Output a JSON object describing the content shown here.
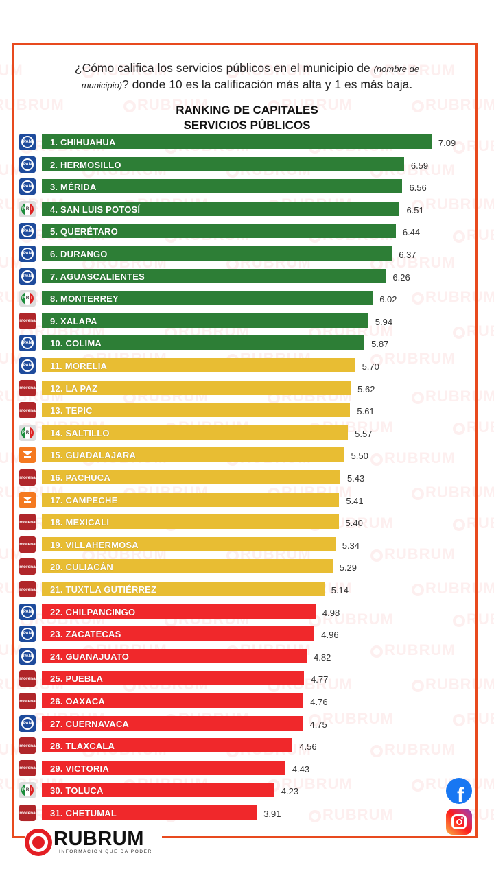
{
  "question": {
    "part1": "¿Cómo califica los servicios públicos en el municipio de ",
    "italic1": "(nombre de",
    "italic2": "municipio)",
    "part2": "? donde 10 es la calificación más alta y 1 es más baja."
  },
  "watermark_text": "RUBRUM",
  "brand": {
    "name": "RUBRUM",
    "tagline": "INFORMACIÓN QUE DA PODER"
  },
  "social": {
    "facebook_icon": "facebook-icon",
    "instagram_icon": "instagram-icon"
  },
  "colors": {
    "high": "#2d7e36",
    "mid": "#e8bd33",
    "low": "#f0282b",
    "frame": "#e84a1e"
  },
  "parties": {
    "PAN": {
      "label": "PAN",
      "icon": "pan-logo-icon"
    },
    "PRI": {
      "label": "PRI",
      "icon": "pri-logo-icon"
    },
    "MORENA": {
      "label": "morena",
      "icon": "morena-logo-icon"
    },
    "MC": {
      "label": "MC",
      "icon": "movimiento-ciudadano-logo-icon"
    }
  },
  "chart_data": {
    "type": "bar",
    "orientation": "horizontal",
    "title": "RANKING DE CAPITALES\nSERVICIOS PÚBLICOS",
    "title_lines": [
      "RANKING DE CAPITALES",
      "SERVICIOS PÚBLICOS"
    ],
    "xlabel": "",
    "ylabel": "",
    "xlim": [
      0,
      10
    ],
    "grid": false,
    "legend": "none",
    "categories": [
      "1. CHIHUAHUA",
      "2. HERMOSILLO",
      "3. MÉRIDA",
      "4. SAN LUIS POTOSÍ",
      "5. QUERÉTARO",
      "6. DURANGO",
      "7. AGUASCALIENTES",
      "8. MONTERREY",
      "9. XALAPA",
      "10. COLIMA",
      "11. MORELIA",
      "12. LA PAZ",
      "13. TEPIC",
      "14. SALTILLO",
      "15. GUADALAJARA",
      "16. PACHUCA",
      "17. CAMPECHE",
      "18. MEXICALI",
      "19. VILLAHERMOSA",
      "20. CULIACÁN",
      "21. TUXTLA GUTIÉRREZ",
      "22. CHILPANCINGO",
      "23. ZACATECAS",
      "24. GUANAJUATO",
      "25. PUEBLA",
      "26. OAXACA",
      "27. CUERNAVACA",
      "28. TLAXCALA",
      "29. VICTORIA",
      "30. TOLUCA",
      "31. CHETUMAL"
    ],
    "values": [
      7.09,
      6.59,
      6.56,
      6.51,
      6.44,
      6.37,
      6.26,
      6.02,
      5.94,
      5.87,
      5.7,
      5.62,
      5.61,
      5.57,
      5.5,
      5.43,
      5.41,
      5.4,
      5.34,
      5.29,
      5.14,
      4.98,
      4.96,
      4.82,
      4.77,
      4.76,
      4.75,
      4.56,
      4.43,
      4.23,
      3.91
    ],
    "value_labels": [
      "7.09",
      "6.59",
      "6.56",
      "6.51",
      "6.44",
      "6.37",
      "6.26",
      "6.02",
      "5.94",
      "5.87",
      "5.70",
      "5.62",
      "5.61",
      "5.57",
      "5.50",
      "5.43",
      "5.41",
      "5.40",
      "5.34",
      "5.29",
      "5.14",
      "4.98",
      "4.96",
      "4.82",
      "4.77",
      "4.76",
      "4.75",
      "4.56",
      "4.43",
      "4.23",
      "3.91"
    ],
    "tiers": [
      "high",
      "high",
      "high",
      "high",
      "high",
      "high",
      "high",
      "high",
      "high",
      "high",
      "mid",
      "mid",
      "mid",
      "mid",
      "mid",
      "mid",
      "mid",
      "mid",
      "mid",
      "mid",
      "mid",
      "low",
      "low",
      "low",
      "low",
      "low",
      "low",
      "low",
      "low",
      "low",
      "low"
    ],
    "parties": [
      "PAN",
      "PAN",
      "PAN",
      "PRI",
      "PAN",
      "PAN",
      "PAN",
      "PRI",
      "MORENA",
      "PAN",
      "PAN",
      "MORENA",
      "MORENA",
      "PRI",
      "MC",
      "MORENA",
      "MC",
      "MORENA",
      "MORENA",
      "MORENA",
      "MORENA",
      "PAN",
      "PAN",
      "PAN",
      "MORENA",
      "MORENA",
      "PAN",
      "MORENA",
      "MORENA",
      "PRI",
      "MORENA"
    ]
  }
}
